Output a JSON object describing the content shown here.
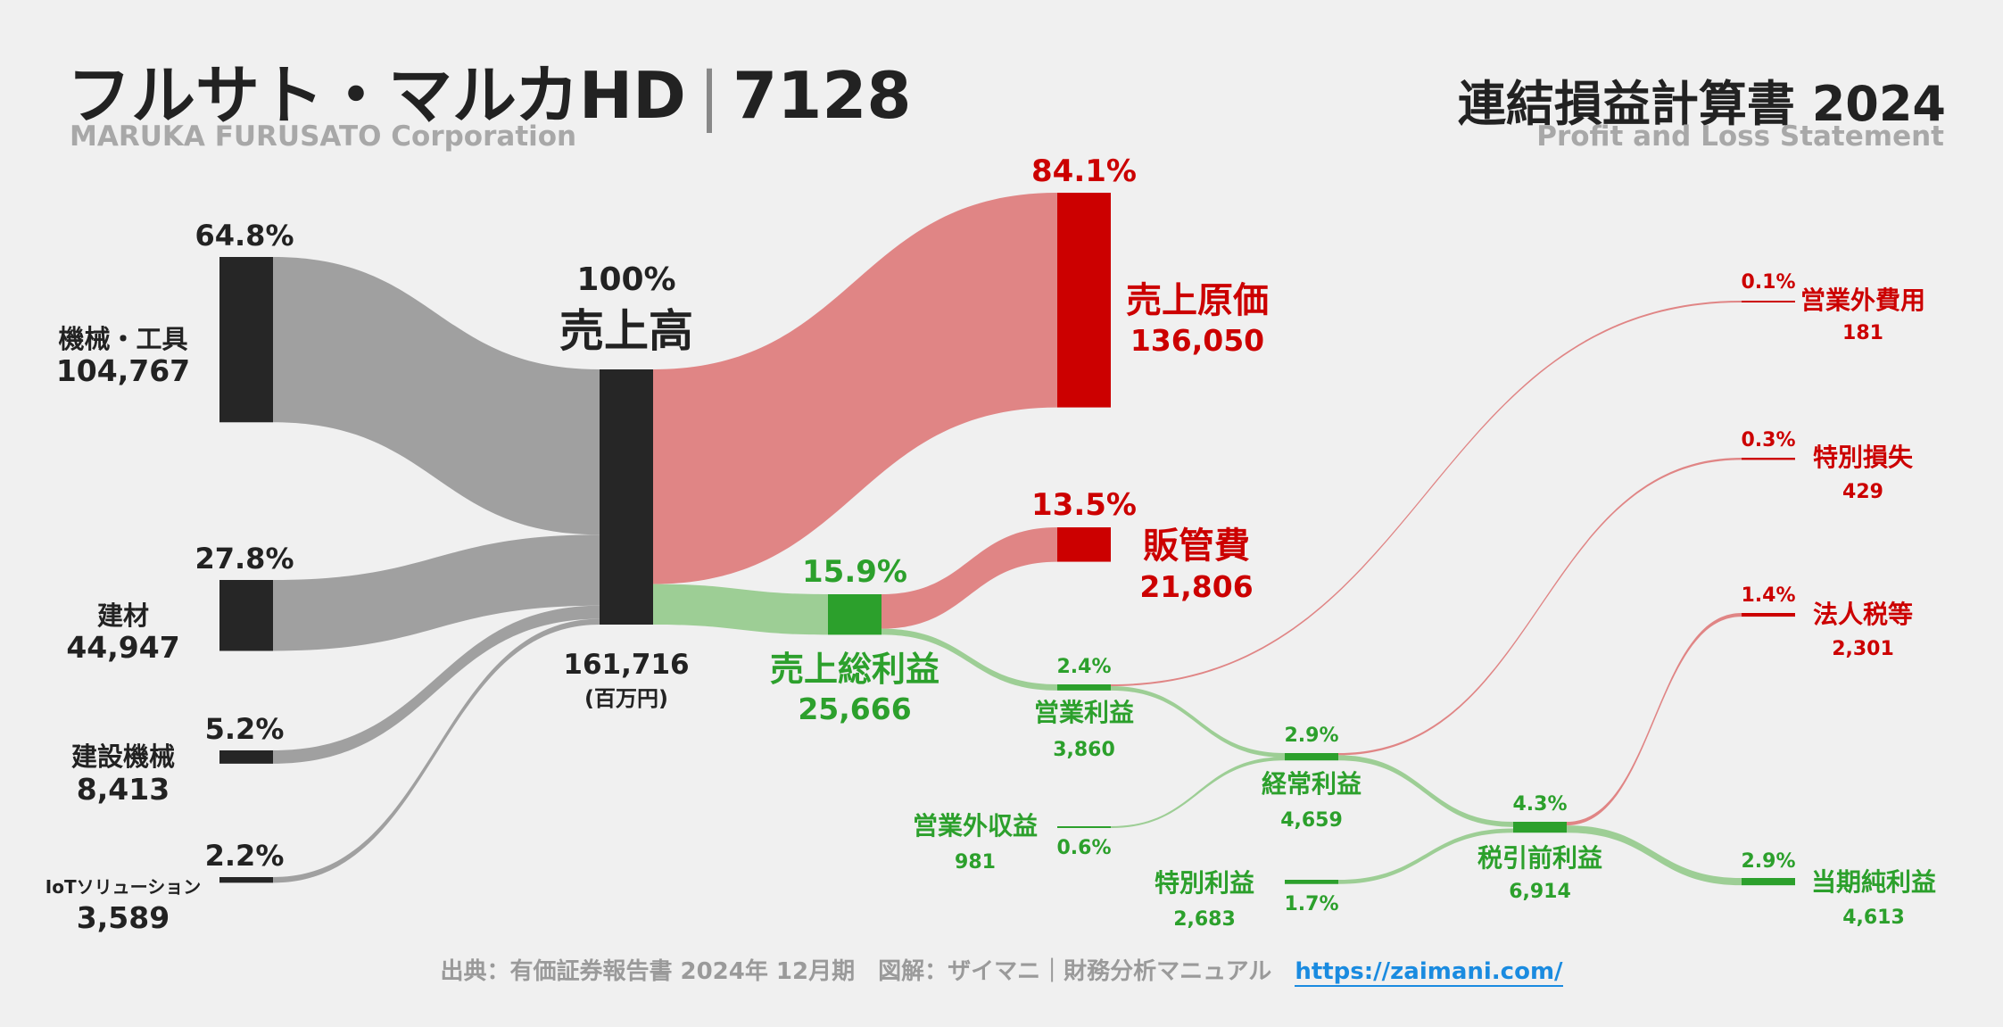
{
  "header": {
    "company": "フルサト・マルカHD",
    "code": "7128",
    "company_en": "MARUKA FURUSATO Corporation",
    "statement": "連結損益計算書 2024",
    "statement_en": "Profit and Loss Statement"
  },
  "footer": {
    "source": "出典：有価証券報告書 2024年 12月期　図解：ザイマニ｜財務分析マニュアル",
    "url": "https://zaimani.com/"
  },
  "colors": {
    "gray_flow": "#a0a0a0",
    "dark_node": "#262626",
    "cost_node": "#cc0000",
    "cost_flow": "#e08585",
    "profit_node": "#2ca02c",
    "profit_flow": "#9dce95",
    "red_text": "#cc0000",
    "green_text": "#2ca02c"
  },
  "chart_data": {
    "type": "sankey",
    "unit": "(百万円)",
    "revenue_label": "売上高",
    "revenue_pct": "100%",
    "revenue": 161716,
    "segments": [
      {
        "name": "機械・工具",
        "value": 104767,
        "pct": "64.8%"
      },
      {
        "name": "建材",
        "value": 44947,
        "pct": "27.8%"
      },
      {
        "name": "建設機械",
        "value": 8413,
        "pct": "5.2%"
      },
      {
        "name": "IoTソリューション",
        "value": 3589,
        "pct": "2.2%"
      }
    ],
    "cost_of_sales": {
      "name": "売上原価",
      "value": 136050,
      "pct": "84.1%"
    },
    "gross_profit": {
      "name": "売上総利益",
      "value": 25666,
      "pct": "15.9%"
    },
    "sga": {
      "name": "販管費",
      "value": 21806,
      "pct": "13.5%"
    },
    "operating_income": {
      "name": "営業利益",
      "value": 3860,
      "pct": "2.4%"
    },
    "non_operating_expense": {
      "name": "営業外費用",
      "value": 181,
      "pct": "0.1%"
    },
    "non_operating_income": {
      "name": "営業外収益",
      "value": 981,
      "pct": "0.6%"
    },
    "ordinary_income": {
      "name": "経常利益",
      "value": 4659,
      "pct": "2.9%"
    },
    "extraordinary_loss": {
      "name": "特別損失",
      "value": 429,
      "pct": "0.3%"
    },
    "extraordinary_income": {
      "name": "特別利益",
      "value": 2683,
      "pct": "1.7%"
    },
    "pretax_income": {
      "name": "税引前利益",
      "value": 6914,
      "pct": "4.3%"
    },
    "income_taxes": {
      "name": "法人税等",
      "value": 2301,
      "pct": "1.4%"
    },
    "net_income": {
      "name": "当期純利益",
      "value": 4613,
      "pct": "2.9%"
    }
  }
}
